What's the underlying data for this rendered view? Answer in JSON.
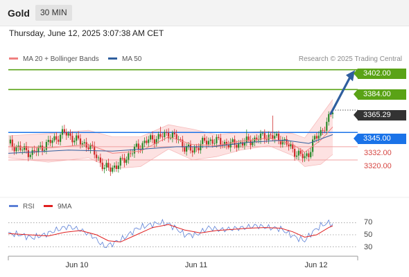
{
  "header": {
    "asset": "Gold",
    "timeframe": "30 MIN"
  },
  "datetime": "Thursday, June 12, 2025 3:07:38 AM CET",
  "legend": {
    "ma20": {
      "label": "MA 20 + Bollinger Bands",
      "color": "#f08080"
    },
    "ma50": {
      "label": "MA 50",
      "color": "#2f5e9e"
    }
  },
  "credit": "Research © 2025 Trading Central",
  "rsi_legend": {
    "rsi": {
      "label": "RSI",
      "color": "#5b7fd6"
    },
    "ma9": {
      "label": "9MA",
      "color": "#e02020"
    }
  },
  "levels": {
    "r2": "3402.00",
    "r1": "3384.00",
    "last": "3365.29",
    "pivot": "3345.00",
    "s1": "3332.00",
    "s2": "3320.00"
  },
  "x_labels": [
    "Jun 10",
    "Jun 11",
    "Jun 12"
  ],
  "rsi_ticks": [
    "70",
    "50",
    "30"
  ],
  "colors": {
    "resistance": "#5aa316",
    "pivot": "#1a73e8",
    "support": "#d64541",
    "last": "#333333",
    "up": "#2c8a2c",
    "down": "#d02b2b",
    "arrow": "#2f5e9e"
  },
  "chart_data": [
    {
      "type": "candlestick",
      "title": "",
      "x_ticks": [
        "Jun 10",
        "Jun 11",
        "Jun 12"
      ],
      "ylim": [
        3286,
        3415
      ],
      "close_path": [
        [
          0,
          3335
        ],
        [
          6,
          3330
        ],
        [
          12,
          3326
        ],
        [
          18,
          3333
        ],
        [
          24,
          3340
        ],
        [
          28,
          3345
        ],
        [
          34,
          3338
        ],
        [
          40,
          3333
        ],
        [
          44,
          3324
        ],
        [
          48,
          3312
        ],
        [
          54,
          3314
        ],
        [
          58,
          3321
        ],
        [
          64,
          3331
        ],
        [
          70,
          3338
        ],
        [
          76,
          3341
        ],
        [
          80,
          3344
        ],
        [
          84,
          3340
        ],
        [
          88,
          3332
        ],
        [
          92,
          3328
        ],
        [
          96,
          3335
        ],
        [
          102,
          3338
        ],
        [
          108,
          3335
        ],
        [
          112,
          3334
        ],
        [
          118,
          3336
        ],
        [
          124,
          3339
        ],
        [
          128,
          3342
        ],
        [
          132,
          3341
        ],
        [
          136,
          3339
        ],
        [
          140,
          3333
        ],
        [
          144,
          3326
        ],
        [
          148,
          3322
        ],
        [
          150,
          3326
        ],
        [
          152,
          3336
        ],
        [
          156,
          3345
        ],
        [
          160,
          3357
        ],
        [
          162,
          3365.29
        ]
      ],
      "ma20": [
        [
          0,
          3332
        ],
        [
          20,
          3331
        ],
        [
          40,
          3334
        ],
        [
          52,
          3326
        ],
        [
          66,
          3328
        ],
        [
          80,
          3341
        ],
        [
          92,
          3334
        ],
        [
          104,
          3333
        ],
        [
          116,
          3337
        ],
        [
          130,
          3340
        ],
        [
          142,
          3334
        ],
        [
          148,
          3327
        ],
        [
          156,
          3338
        ],
        [
          162,
          3350
        ]
      ],
      "bb_upper": [
        [
          0,
          3342
        ],
        [
          20,
          3344
        ],
        [
          40,
          3347
        ],
        [
          52,
          3341
        ],
        [
          66,
          3341
        ],
        [
          80,
          3352
        ],
        [
          92,
          3348
        ],
        [
          104,
          3343
        ],
        [
          116,
          3345
        ],
        [
          130,
          3346
        ],
        [
          142,
          3344
        ],
        [
          148,
          3340
        ],
        [
          156,
          3360
        ],
        [
          162,
          3375
        ]
      ],
      "bb_lower": [
        [
          0,
          3322
        ],
        [
          20,
          3318
        ],
        [
          40,
          3322
        ],
        [
          52,
          3312
        ],
        [
          66,
          3314
        ],
        [
          80,
          3330
        ],
        [
          92,
          3320
        ],
        [
          104,
          3323
        ],
        [
          116,
          3329
        ],
        [
          130,
          3333
        ],
        [
          142,
          3324
        ],
        [
          148,
          3314
        ],
        [
          156,
          3316
        ],
        [
          162,
          3325
        ]
      ],
      "ma50": [
        [
          0,
          3326
        ],
        [
          30,
          3329
        ],
        [
          52,
          3328
        ],
        [
          68,
          3330
        ],
        [
          84,
          3332
        ],
        [
          102,
          3332
        ],
        [
          120,
          3336
        ],
        [
          138,
          3338
        ],
        [
          150,
          3335
        ],
        [
          162,
          3343
        ]
      ],
      "levels": [
        3402,
        3384,
        3345,
        3332,
        3320
      ],
      "last": 3365.29
    },
    {
      "type": "line",
      "title": "",
      "ylim": [
        20,
        80
      ],
      "ticks": [
        70,
        50,
        30
      ],
      "series": [
        {
          "name": "RSI",
          "values": [
            [
              0,
              52
            ],
            [
              6,
              50
            ],
            [
              12,
              45
            ],
            [
              18,
              50
            ],
            [
              24,
              58
            ],
            [
              30,
              64
            ],
            [
              36,
              58
            ],
            [
              42,
              48
            ],
            [
              48,
              30
            ],
            [
              52,
              35
            ],
            [
              58,
              45
            ],
            [
              64,
              60
            ],
            [
              70,
              66
            ],
            [
              76,
              70
            ],
            [
              80,
              68
            ],
            [
              84,
              60
            ],
            [
              88,
              50
            ],
            [
              94,
              50
            ],
            [
              100,
              62
            ],
            [
              106,
              58
            ],
            [
              112,
              60
            ],
            [
              118,
              62
            ],
            [
              124,
              65
            ],
            [
              130,
              62
            ],
            [
              136,
              60
            ],
            [
              140,
              52
            ],
            [
              144,
              45
            ],
            [
              148,
              40
            ],
            [
              152,
              55
            ],
            [
              156,
              65
            ],
            [
              160,
              70
            ],
            [
              162,
              67
            ]
          ]
        },
        {
          "name": "9MA",
          "values": [
            [
              0,
              52
            ],
            [
              10,
              50
            ],
            [
              20,
              48
            ],
            [
              28,
              54
            ],
            [
              36,
              57
            ],
            [
              44,
              50
            ],
            [
              50,
              40
            ],
            [
              56,
              38
            ],
            [
              64,
              50
            ],
            [
              72,
              62
            ],
            [
              80,
              67
            ],
            [
              88,
              58
            ],
            [
              96,
              53
            ],
            [
              104,
              57
            ],
            [
              112,
              59
            ],
            [
              120,
              61
            ],
            [
              128,
              62
            ],
            [
              136,
              61
            ],
            [
              142,
              55
            ],
            [
              148,
              46
            ],
            [
              154,
              50
            ],
            [
              160,
              62
            ],
            [
              162,
              65
            ]
          ]
        }
      ]
    }
  ]
}
